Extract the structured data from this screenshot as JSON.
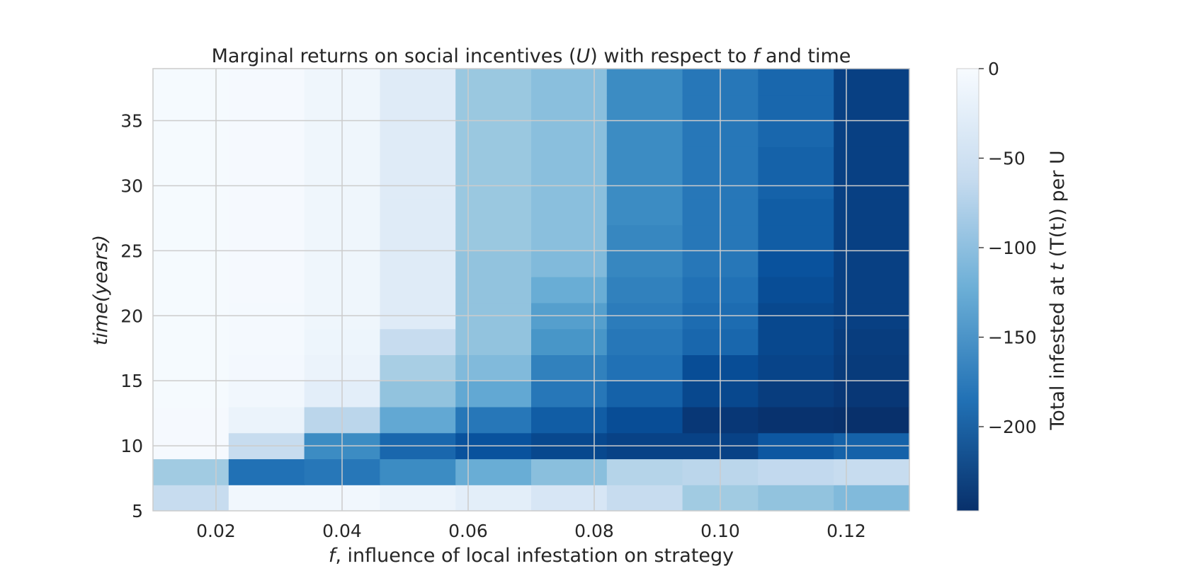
{
  "chart_data": {
    "type": "heatmap",
    "title": "Marginal returns on social incentives (U) with respect to f and time",
    "title_parts": [
      "Marginal returns on social incentives (",
      "U",
      ") with respect to ",
      "f",
      " and time"
    ],
    "xlabel": "f, influence of local infestation on strategy",
    "xlabel_parts": [
      "f",
      ", influence of local infestation on strategy"
    ],
    "ylabel": "time(years)",
    "colorbar_label": "Total infested at t (T(t)) per U",
    "colorbar_label_parts": [
      "Total infested at ",
      "t",
      " (T(t)) per U"
    ],
    "colormap": "Blues_r",
    "colors": {
      "min": "#08306b",
      "max": "#f7fbff",
      "grid": "#cccccc"
    },
    "grid": true,
    "xlim": [
      0.01,
      0.13
    ],
    "ylim": [
      5,
      39
    ],
    "clim": [
      -247,
      0
    ],
    "x_ticks": [
      "0.02",
      "0.04",
      "0.06",
      "0.08",
      "0.10",
      "0.12"
    ],
    "y_ticks": [
      "5",
      "10",
      "15",
      "20",
      "25",
      "30",
      "35"
    ],
    "colorbar_ticks": [
      "0",
      "−50",
      "−100",
      "−150",
      "−200"
    ],
    "x": [
      0.016,
      0.028,
      0.04,
      0.052,
      0.064,
      0.076,
      0.088,
      0.1,
      0.112,
      0.124
    ],
    "x_edges": [
      0.01,
      0.022,
      0.034,
      0.046,
      0.058,
      0.07,
      0.082,
      0.094,
      0.106,
      0.118,
      0.13
    ],
    "y_edges": [
      5,
      7,
      9,
      11,
      13,
      15,
      17,
      19,
      21,
      23,
      25,
      27,
      29,
      31,
      33,
      35,
      37,
      39
    ],
    "z": [
      [
        -60,
        -8,
        -8,
        -15,
        -25,
        -40,
        -60,
        -90,
        -100,
        -110
      ],
      [
        -90,
        -185,
        -180,
        -160,
        -125,
        -105,
        -75,
        -70,
        -65,
        -60
      ],
      [
        -3,
        -60,
        -160,
        -195,
        -215,
        -225,
        -230,
        -230,
        -210,
        -200
      ],
      [
        -3,
        -15,
        -70,
        -130,
        -180,
        -205,
        -220,
        -240,
        -245,
        -247
      ],
      [
        -2,
        -8,
        -25,
        -100,
        -130,
        -180,
        -200,
        -225,
        -235,
        -240
      ],
      [
        -2,
        -5,
        -15,
        -85,
        -110,
        -170,
        -185,
        -220,
        -228,
        -237
      ],
      [
        -2,
        -4,
        -12,
        -60,
        -100,
        -150,
        -180,
        -195,
        -225,
        -235
      ],
      [
        -2,
        -4,
        -10,
        -30,
        -100,
        -140,
        -175,
        -190,
        -225,
        -232
      ],
      [
        -2,
        -3,
        -10,
        -30,
        -100,
        -125,
        -170,
        -185,
        -220,
        -232
      ],
      [
        -2,
        -3,
        -10,
        -30,
        -100,
        -110,
        -165,
        -180,
        -215,
        -232
      ],
      [
        -2,
        -3,
        -10,
        -30,
        -95,
        -105,
        -165,
        -180,
        -205,
        -232
      ],
      [
        -2,
        -3,
        -10,
        -30,
        -95,
        -105,
        -160,
        -180,
        -205,
        -232
      ],
      [
        -2,
        -3,
        -10,
        -30,
        -95,
        -105,
        -160,
        -180,
        -200,
        -232
      ],
      [
        -2,
        -3,
        -10,
        -30,
        -95,
        -105,
        -160,
        -180,
        -200,
        -232
      ],
      [
        -2,
        -3,
        -10,
        -30,
        -95,
        -105,
        -160,
        -180,
        -195,
        -232
      ],
      [
        -2,
        -3,
        -10,
        -30,
        -95,
        -105,
        -160,
        -180,
        -195,
        -232
      ],
      [
        -2,
        -3,
        -10,
        -30,
        -95,
        -105,
        -160,
        -180,
        -195,
        -232
      ]
    ]
  }
}
